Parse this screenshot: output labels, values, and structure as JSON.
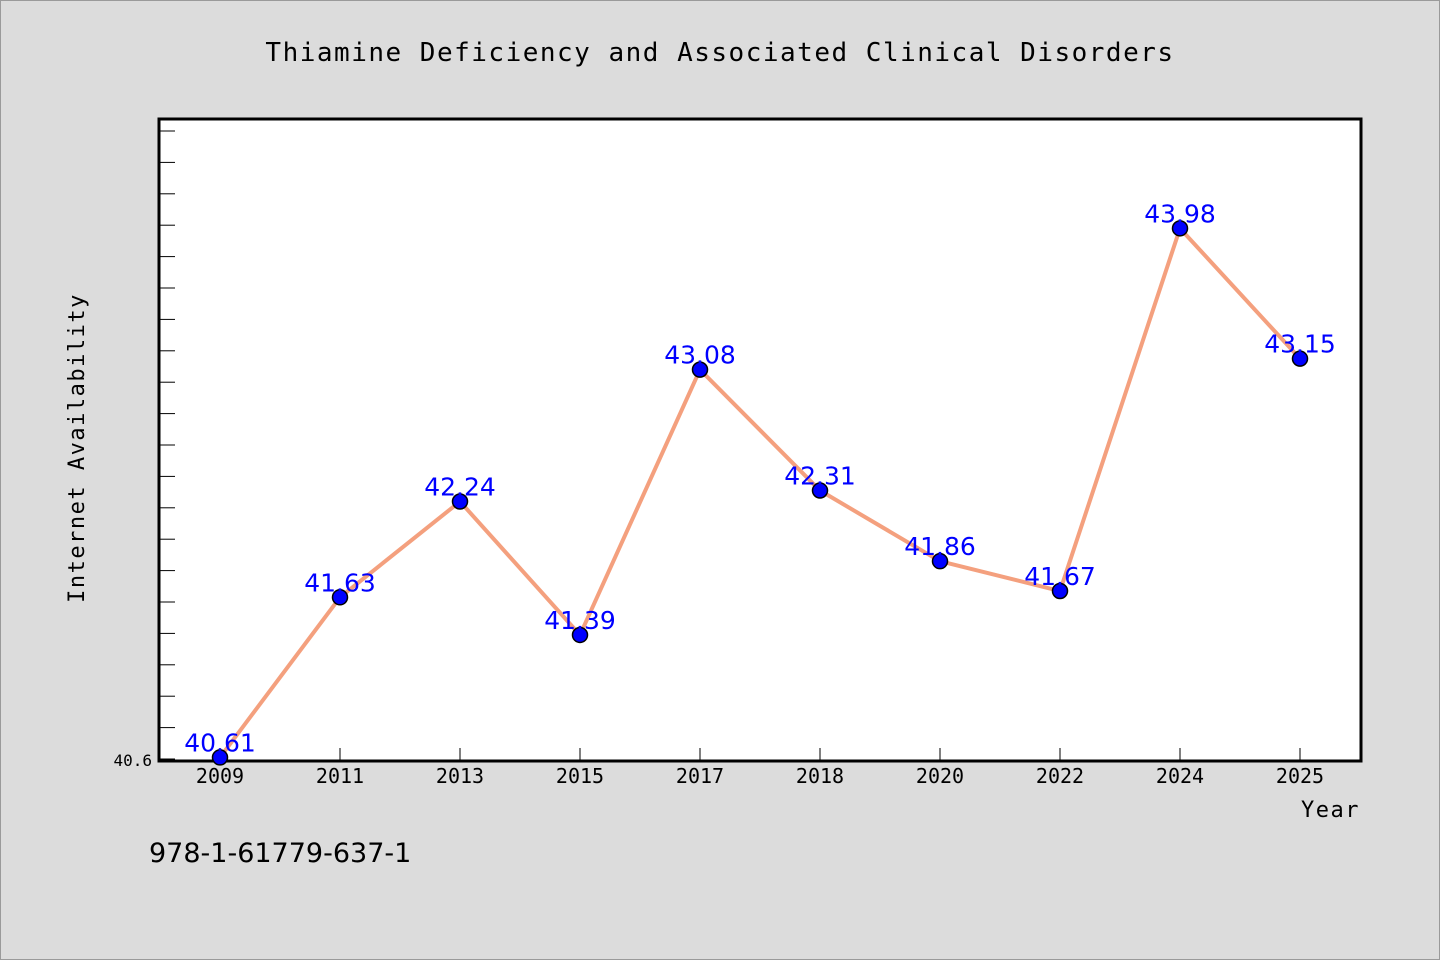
{
  "chart_data": {
    "type": "line",
    "title": "Thiamine Deficiency and Associated Clinical Disorders",
    "xlabel": "Year",
    "ylabel": "Internet Availability",
    "categories": [
      "2009",
      "2011",
      "2013",
      "2015",
      "2017",
      "2018",
      "2020",
      "2022",
      "2024",
      "2025"
    ],
    "series": [
      {
        "values": [
          40.61,
          41.63,
          42.24,
          41.39,
          43.08,
          42.31,
          41.86,
          41.67,
          43.98,
          43.15
        ],
        "labels": [
          "40.61",
          "41.63",
          "42.24",
          "41.39",
          "43.08",
          "42.31",
          "41.86",
          "41.67",
          "43.98",
          "43.15"
        ]
      }
    ],
    "ylim": [
      40.6,
      44.6
    ],
    "ytick_label": "40.6",
    "grid": false,
    "colors": {
      "line": "#f4a07e",
      "marker": "#0000ff",
      "data_label": "#0000ff",
      "plot_background": "#ffffff",
      "page_background": "#dcdcdc"
    }
  },
  "footer": {
    "isbn": "978-1-61779-637-1"
  }
}
